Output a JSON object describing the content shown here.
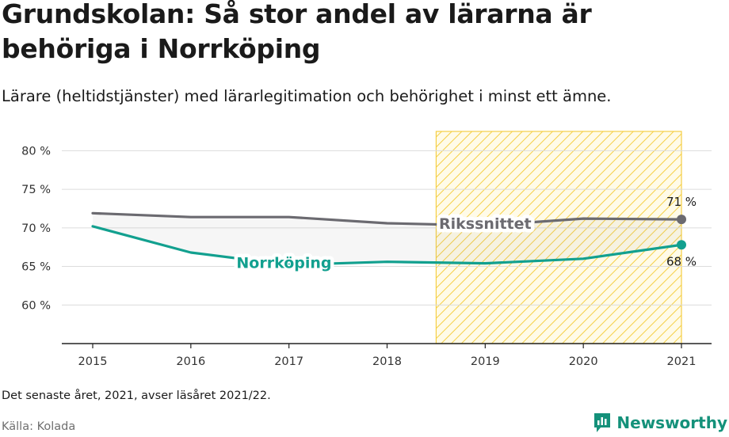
{
  "title": "Grundskolan: Så stor andel av lärarna är behöriga i Norrköping",
  "subtitle": "Lärare (heltidstjänster) med lärarlegitimation och behörighet i minst ett ämne.",
  "footnote": "Det senaste året, 2021, avser läsåret 2021/22.",
  "source": "Källa: Kolada",
  "brand": {
    "name": "Newsworthy",
    "icon": "newsworthy-logo-icon",
    "color": "#14917a"
  },
  "chart_data": {
    "type": "line",
    "x": [
      2015,
      2016,
      2017,
      2018,
      2019,
      2020,
      2021
    ],
    "x_tick_labels": [
      "2015",
      "2016",
      "2017",
      "2018",
      "2019",
      "2020",
      "2021"
    ],
    "ylim": [
      55,
      82.5
    ],
    "y_ticks": [
      60,
      65,
      70,
      75,
      80
    ],
    "y_tick_labels": [
      "60 %",
      "65 %",
      "70 %",
      "75 %",
      "80 %"
    ],
    "grid": true,
    "highlight_range": [
      2018.5,
      2021
    ],
    "highlight_color": "#f5cf45",
    "series": [
      {
        "name": "Rikssnittet",
        "color": "#6b6a70",
        "values": [
          71.9,
          71.4,
          71.4,
          70.6,
          70.3,
          71.2,
          71.1
        ],
        "end_label": "71 %"
      },
      {
        "name": "Norrköping",
        "color": "#12a08f",
        "values": [
          70.2,
          66.8,
          65.2,
          65.6,
          65.4,
          66.0,
          67.8
        ],
        "end_label": "68 %"
      }
    ]
  }
}
